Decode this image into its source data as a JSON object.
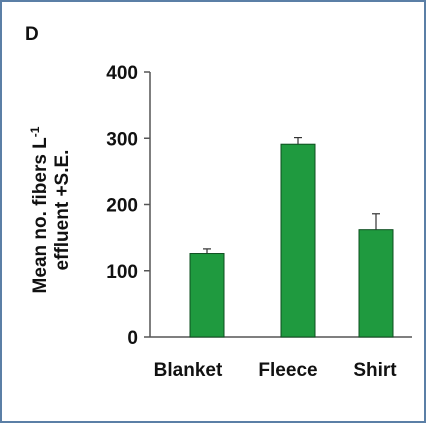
{
  "panel_label": "D",
  "chart_data": {
    "type": "bar",
    "categories": [
      "Blanket",
      "Fleece",
      "Shirt"
    ],
    "values": [
      126,
      291,
      162
    ],
    "errors": [
      7,
      10,
      24
    ],
    "ylabel_line1": "Mean no. fibers L",
    "ylabel_superscript": "-1",
    "ylabel_line2": "effluent +S.E.",
    "ylim": [
      0,
      400
    ],
    "yticks": [
      0,
      100,
      200,
      300,
      400
    ],
    "yticklabels": [
      "0",
      "100",
      "200",
      "300",
      "400"
    ],
    "bar_color": "#1f9a3f",
    "grid": false
  }
}
